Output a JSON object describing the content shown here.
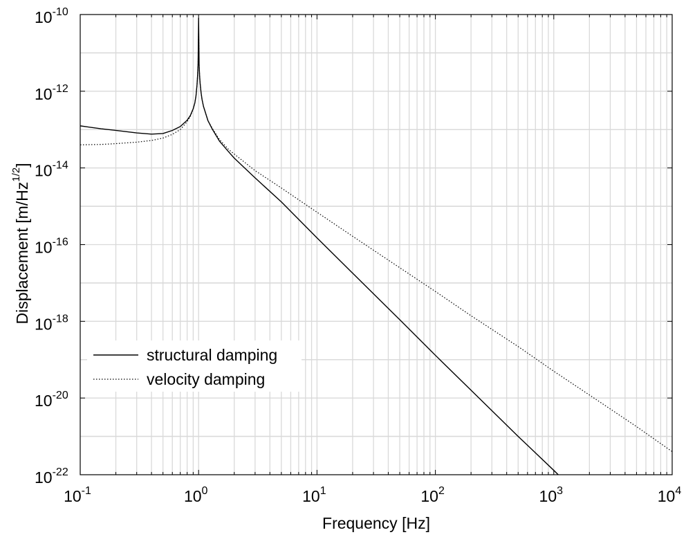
{
  "chart_data": {
    "type": "line",
    "xlabel": "Frequency [Hz]",
    "ylabel": "Displacement [m/Hz",
    "ylabel_sup": "1/2",
    "ylabel_end": "]",
    "x_scale": "log",
    "y_scale": "log",
    "xlim": [
      0.1,
      10000
    ],
    "ylim": [
      1e-22,
      1e-10
    ],
    "x_ticks": [
      {
        "base": "10",
        "exp": "-1",
        "value": 0.1
      },
      {
        "base": "10",
        "exp": "0",
        "value": 1
      },
      {
        "base": "10",
        "exp": "1",
        "value": 10
      },
      {
        "base": "10",
        "exp": "2",
        "value": 100
      },
      {
        "base": "10",
        "exp": "3",
        "value": 1000
      },
      {
        "base": "10",
        "exp": "4",
        "value": 10000
      }
    ],
    "y_ticks": [
      {
        "base": "10",
        "exp": "-10",
        "value": 1e-10
      },
      {
        "base": "10",
        "exp": "-12",
        "value": 1e-12
      },
      {
        "base": "10",
        "exp": "-14",
        "value": 1e-14
      },
      {
        "base": "10",
        "exp": "-16",
        "value": 1e-16
      },
      {
        "base": "10",
        "exp": "-18",
        "value": 1e-18
      },
      {
        "base": "10",
        "exp": "-20",
        "value": 1e-20
      },
      {
        "base": "10",
        "exp": "-22",
        "value": 1e-22
      }
    ],
    "grid": true,
    "legend_position": "bottom-left",
    "series": [
      {
        "name": "structural damping",
        "style": "solid",
        "color": "#000000",
        "x": [
          0.1,
          0.15,
          0.2,
          0.3,
          0.4,
          0.5,
          0.6,
          0.7,
          0.8,
          0.85,
          0.9,
          0.93,
          0.95,
          0.97,
          0.98,
          0.99,
          1.0,
          1.01,
          1.02,
          1.03,
          1.05,
          1.07,
          1.1,
          1.2,
          1.3,
          1.5,
          1.8,
          2,
          3,
          5,
          10,
          20,
          50,
          100,
          200,
          500,
          1000,
          2000,
          2500
        ],
        "y": [
          1.25e-13,
          1.05e-13,
          9.5e-14,
          8.2e-14,
          7.6e-14,
          7.9e-14,
          9.5e-14,
          1.2e-13,
          1.75e-13,
          2.3e-13,
          3.5e-13,
          5e-13,
          7.5e-13,
          1.5e-12,
          2.5e-12,
          5e-12,
          8e-11,
          5e-12,
          2.5e-12,
          1.6e-12,
          9e-13,
          6e-13,
          4e-13,
          1.7e-13,
          1.05e-13,
          5e-14,
          2.6e-14,
          1.8e-14,
          5.5e-15,
          1.3e-15,
          1.5e-16,
          1.8e-17,
          1.1e-18,
          1.3e-19,
          1.6e-20,
          1e-21,
          1.3e-22,
          1.6e-23,
          1e-22
        ]
      },
      {
        "name": "velocity damping",
        "style": "dotted",
        "color": "#000000",
        "x": [
          0.1,
          0.15,
          0.2,
          0.3,
          0.4,
          0.5,
          0.6,
          0.7,
          0.8,
          0.85,
          0.9,
          0.93,
          0.95,
          0.97,
          0.98,
          0.99,
          1.0,
          1.01,
          1.02,
          1.03,
          1.05,
          1.07,
          1.1,
          1.2,
          1.3,
          1.5,
          1.8,
          2,
          3,
          5,
          10,
          20,
          50,
          100,
          200,
          500,
          1000,
          2000,
          5000,
          10000
        ],
        "y": [
          4e-14,
          4.1e-14,
          4.3e-14,
          4.7e-14,
          5.2e-14,
          6e-14,
          7.5e-14,
          1e-13,
          1.6e-13,
          2.2e-13,
          3.4e-13,
          5e-13,
          7.5e-13,
          1.5e-12,
          2.5e-12,
          5e-12,
          5e-11,
          5e-12,
          2.5e-12,
          1.6e-12,
          9e-13,
          6e-13,
          4e-13,
          1.7e-13,
          1.1e-13,
          5.5e-14,
          3e-14,
          2.3e-14,
          8.5e-15,
          3e-15,
          7e-16,
          1.65e-16,
          2.5e-17,
          6e-18,
          1.4e-18,
          2.2e-19,
          5e-20,
          1.2e-20,
          1.8e-21,
          4e-22
        ]
      }
    ]
  }
}
